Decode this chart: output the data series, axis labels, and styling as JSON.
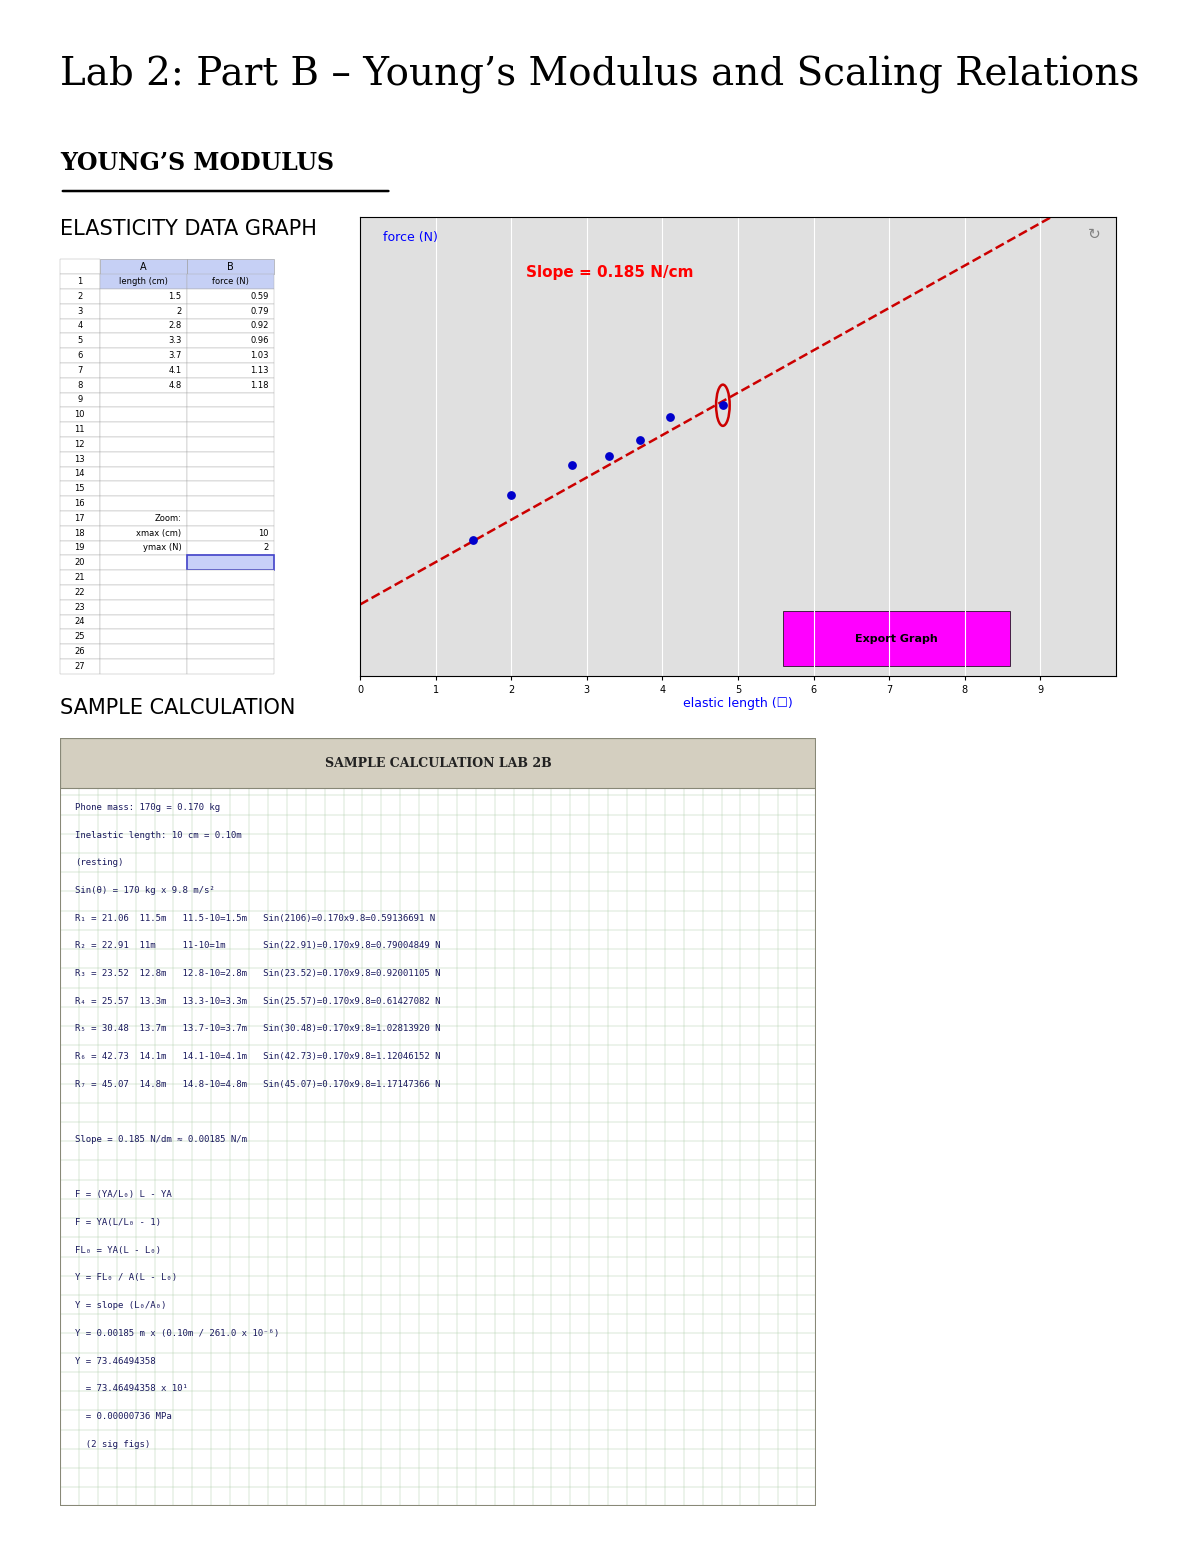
{
  "title": "Lab 2: Part B – Young’s Modulus and Scaling Relations",
  "section1": "YOUNG’S MODULUS",
  "section2_label": "ELASTICITY DATA GRAPH",
  "section3_label": "SAMPLE CALCULATION",
  "table_col_labels": [
    "length (cm)",
    "force (N)"
  ],
  "table_data": [
    [
      "1.5",
      "0.59"
    ],
    [
      "2",
      "0.79"
    ],
    [
      "2.8",
      "0.92"
    ],
    [
      "3.3",
      "0.96"
    ],
    [
      "3.7",
      "1.03"
    ],
    [
      "4.1",
      "1.13"
    ],
    [
      "4.8",
      "1.18"
    ]
  ],
  "graph_xlabel": "elastic length (☐)",
  "graph_ylabel": "force (N)",
  "graph_slope_text": "Slope = 0.185 N/cm",
  "graph_export_text": "Export Graph",
  "graph_xlim": [
    0,
    10
  ],
  "graph_ylim": [
    0,
    2
  ],
  "graph_xticks": [
    0,
    1,
    2,
    3,
    4,
    5,
    6,
    7,
    8,
    9
  ],
  "graph_yticks": [
    0.2,
    0.4,
    0.6,
    0.8,
    1.0,
    1.2,
    1.4,
    1.6,
    1.8
  ],
  "data_x": [
    1.5,
    2.0,
    2.8,
    3.3,
    3.7,
    4.1,
    4.8
  ],
  "data_y": [
    0.59,
    0.79,
    0.92,
    0.96,
    1.03,
    1.13,
    1.18
  ],
  "circled_point_idx": 6,
  "slope": 0.185,
  "intercept": 0.31,
  "dot_color": "#0000cc",
  "line_color": "#cc0000",
  "slope_text_color": "#ff0000",
  "export_btn_color": "#ff00ff",
  "xlabel_color": "#0000ff",
  "ylabel_color": "#0000ff",
  "bg_color": "#ffffff",
  "graph_bg_color": "#e0e0e0",
  "title_fontsize": 28,
  "section_fontsize": 17,
  "label_fontsize": 14,
  "sample_calc_title": "SAMPLE CALCULATION LAB 2B",
  "fig_width": 12.0,
  "fig_height": 15.53
}
